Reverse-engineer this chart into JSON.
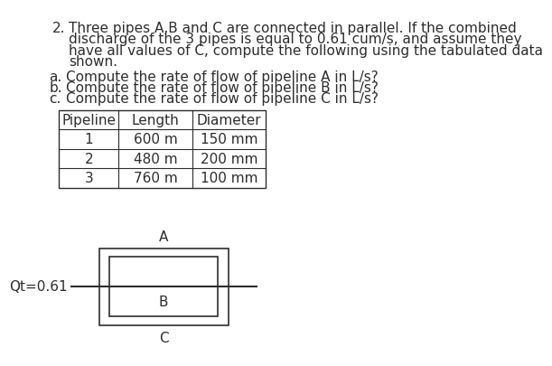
{
  "bg_color": "#ffffff",
  "text_color": "#2d2d2d",
  "title_number": "2.",
  "title_line1": "Three pipes A,B and C are connected in parallel. If the combined",
  "title_line2": "discharge of the 3 pipes is equal to 0.61 cum/s, and assume they",
  "title_line3": "have all values of C, compute the following using the tabulated data",
  "title_line4": "shown.",
  "sub_a": "Compute the rate of flow of pipeline A in L/s?",
  "sub_b": "Compute the rate of flow of pipeline B in L/s?",
  "sub_c": "Compute the rate of flow of pipeline C in L/s?",
  "sub_labels": [
    "a.",
    "b.",
    "c."
  ],
  "table_headers": [
    "Pipeline",
    "Length",
    "Diameter"
  ],
  "table_rows": [
    [
      "1",
      "600 m",
      "150 mm"
    ],
    [
      "2",
      "480 m",
      "200 mm"
    ],
    [
      "3",
      "760 m",
      "100 mm"
    ]
  ],
  "diagram_label_A": "A",
  "diagram_label_B": "B",
  "diagram_label_C": "C",
  "diagram_label_Qt": "Qt=0.61",
  "font_size_main": 11,
  "font_size_table": 11,
  "font_size_diagram": 11
}
